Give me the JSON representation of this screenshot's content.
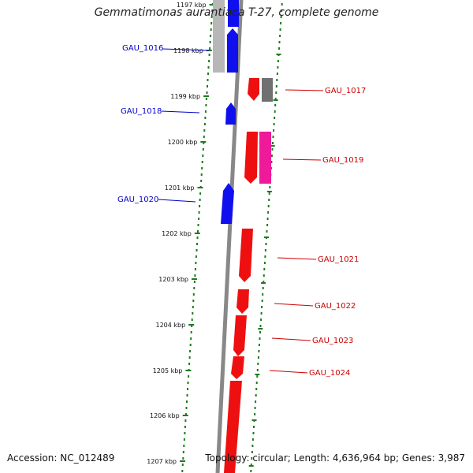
{
  "title": "Gemmatimonas aurantiaca T-27, complete genome",
  "accession": "Accession: NC_012489",
  "summary": "Topology: circular; Length: 4,636,964 bp; Genes: 3,987",
  "colors": {
    "forward": "#ff0000",
    "reverse": "#0000ff",
    "pseudo_gray": "#999999",
    "magenta": "#ff1493",
    "dots": "#1e7a1e",
    "backbone": "#888888"
  },
  "ticks": [
    "1197 kbp",
    "1198 kbp",
    "1199 kbp",
    "1200 kbp",
    "1201 kbp",
    "1202 kbp",
    "1203 kbp",
    "1204 kbp",
    "1205 kbp",
    "1206 kbp",
    "1207 kbp"
  ],
  "genes": [
    {
      "name": "GAU_1016",
      "strand": "-"
    },
    {
      "name": "GAU_1017",
      "strand": "+"
    },
    {
      "name": "GAU_1018",
      "strand": "-"
    },
    {
      "name": "GAU_1019",
      "strand": "+"
    },
    {
      "name": "GAU_1020",
      "strand": "-"
    },
    {
      "name": "GAU_1021",
      "strand": "+"
    },
    {
      "name": "GAU_1022",
      "strand": "+"
    },
    {
      "name": "GAU_1023",
      "strand": "+"
    },
    {
      "name": "GAU_1024",
      "strand": "+"
    }
  ]
}
